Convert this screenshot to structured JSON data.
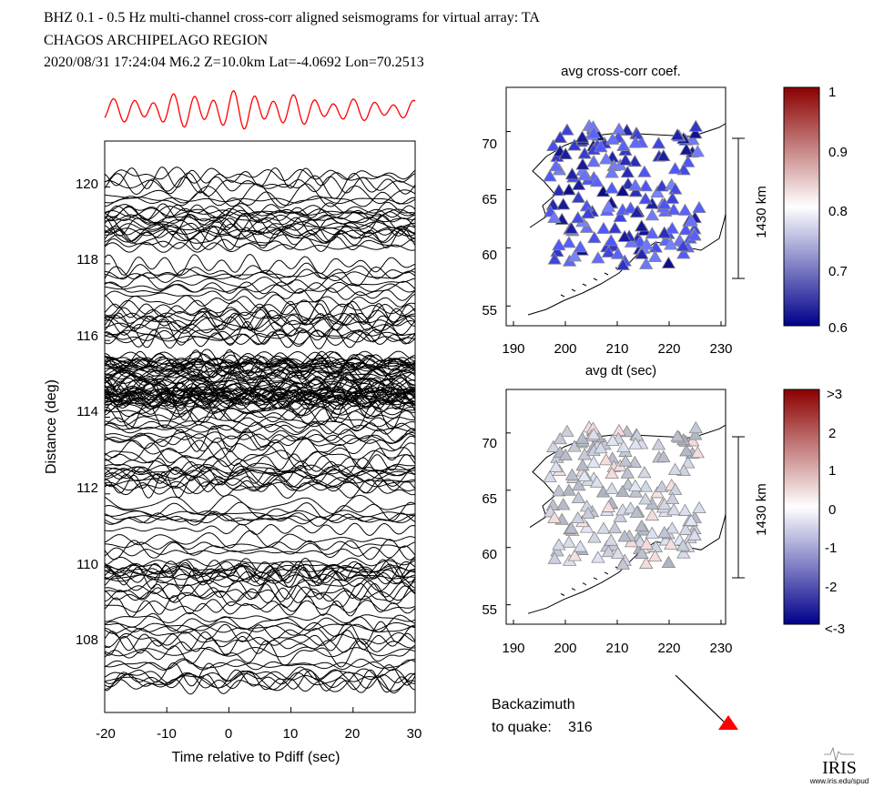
{
  "header": {
    "line1": "BHZ  0.1 - 0.5 Hz  multi-channel cross-corr aligned seismograms for virtual array: TA",
    "line2": "CHAGOS ARCHIPELAGO REGION",
    "line3": "2020/08/31  17:24:04  M6.2  Z=10.0km Lat=-4.0692 Lon=70.2513"
  },
  "chart_data": [
    {
      "type": "line",
      "name": "seismogram-section",
      "xlabel": "Time relative to Pdiff (sec)",
      "ylabel": "Distance (deg)",
      "xlim": [
        -20,
        30
      ],
      "ylim": [
        106.3,
        121.2
      ],
      "xticks": [
        "-20",
        "-10",
        "0",
        "10",
        "20",
        "30"
      ],
      "yticks": [
        "108",
        "110",
        "112",
        "114",
        "116",
        "118",
        "120"
      ],
      "stack_trace_color": "#ff0000",
      "trace_color": "#000000"
    },
    {
      "type": "scatter",
      "name": "avg-cross-corr-map",
      "title": "avg cross-corr coef.",
      "xticks": [
        "190",
        "200",
        "210",
        "220",
        "230"
      ],
      "yticks": [
        "55",
        "60",
        "65",
        "70"
      ],
      "scale_label": "1430 km",
      "colorbar_ticks": [
        "1",
        "0.9",
        "0.8",
        "0.7",
        "0.6"
      ],
      "colorbar_colors": [
        "#8b0000",
        "#ffffff",
        "#00008b"
      ],
      "marker": "triangle"
    },
    {
      "type": "scatter",
      "name": "avg-dt-map",
      "title": "avg dt (sec)",
      "xticks": [
        "190",
        "200",
        "210",
        "220",
        "230"
      ],
      "yticks": [
        "55",
        "60",
        "65",
        "70"
      ],
      "scale_label": "1430 km",
      "colorbar_ticks": [
        ">3",
        "2",
        "1",
        "0",
        "-1",
        "-2",
        "<-3"
      ],
      "colorbar_colors": [
        "#8b0000",
        "#ffffff",
        "#00008b"
      ],
      "marker": "triangle"
    }
  ],
  "backazimuth": {
    "label1": "Backazimuth",
    "label2": "to quake:",
    "value": "316",
    "marker_color": "#ff0000"
  },
  "logo": {
    "text": "IRIS",
    "url_text": "www.iris.edu/spud"
  }
}
